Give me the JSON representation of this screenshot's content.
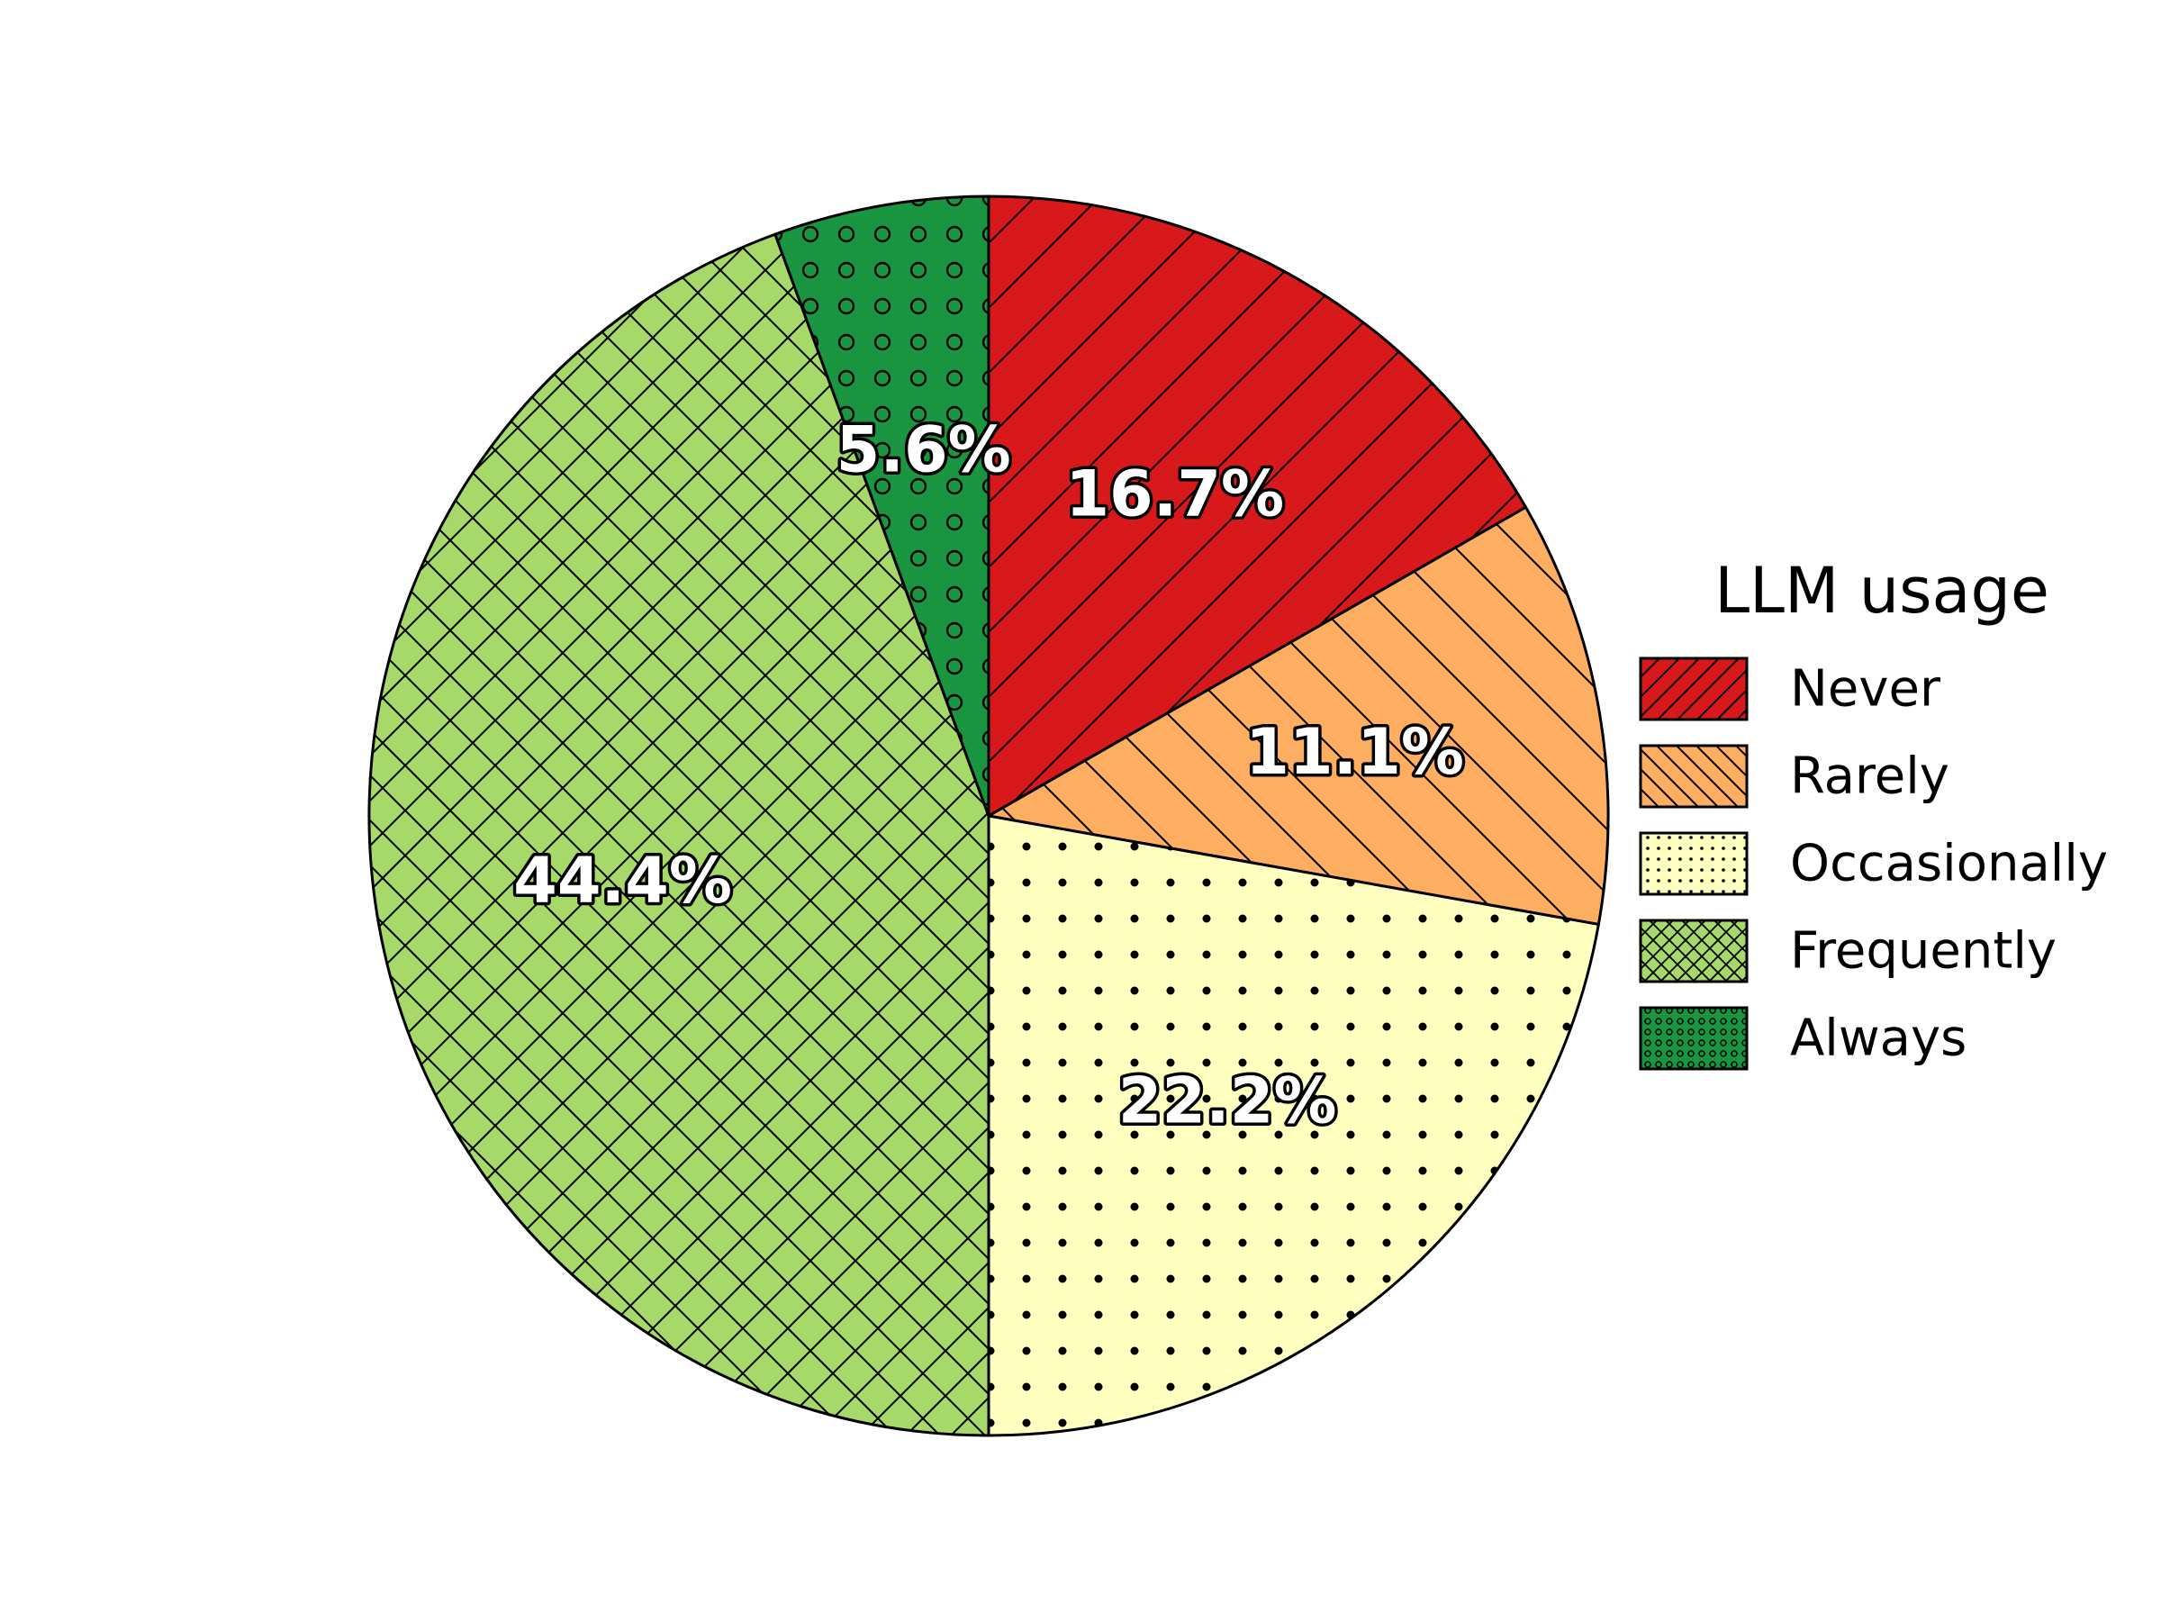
{
  "chart_data": {
    "type": "pie",
    "categories": [
      "Never",
      "Rarely",
      "Occasionally",
      "Frequently",
      "Always"
    ],
    "values": [
      16.7,
      11.1,
      22.2,
      44.4,
      5.6
    ],
    "labels": [
      "16.7%",
      "11.1%",
      "22.2%",
      "44.4%",
      "5.6%"
    ],
    "colors": [
      "#d7191c",
      "#fdae61",
      "#ffffc0",
      "#a6d96a",
      "#1a9641"
    ],
    "hatches": [
      "diagonal-forward",
      "diagonal-back",
      "dots",
      "crosshatch",
      "circles"
    ],
    "start_angle": "top",
    "direction": "clockwise",
    "legend_title": "LLM usage",
    "legend_position": "right"
  }
}
